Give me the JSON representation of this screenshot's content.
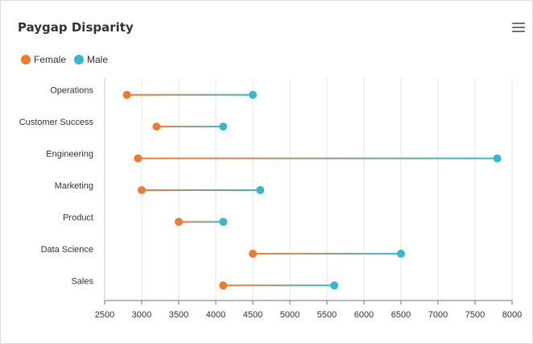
{
  "title": "Paygap Disparity",
  "colors": {
    "female": "#f07b2f",
    "male": "#33b9c9",
    "grid": "#e4e4e4",
    "axis": "#6e7079"
  },
  "legend": [
    {
      "label": "Female",
      "color": "#f07b2f"
    },
    {
      "label": "Male",
      "color": "#33b9c9"
    }
  ],
  "menu_icon": "hamburger-menu-icon",
  "chart_data": {
    "type": "dumbbell",
    "categories": [
      "Operations",
      "Customer Success",
      "Engineering",
      "Marketing",
      "Product",
      "Data Science",
      "Sales"
    ],
    "series": [
      {
        "name": "Female",
        "values": [
          2800,
          3200,
          2950,
          3000,
          3500,
          4500,
          4100
        ]
      },
      {
        "name": "Male",
        "values": [
          4500,
          4100,
          7800,
          4600,
          4100,
          6500,
          5600
        ]
      }
    ],
    "xlim": [
      2500,
      8000
    ],
    "xticks": [
      2500,
      3000,
      3500,
      4000,
      4500,
      5000,
      5500,
      6000,
      6500,
      7000,
      7500,
      8000
    ],
    "grid": true,
    "legend_position": "top-left"
  }
}
